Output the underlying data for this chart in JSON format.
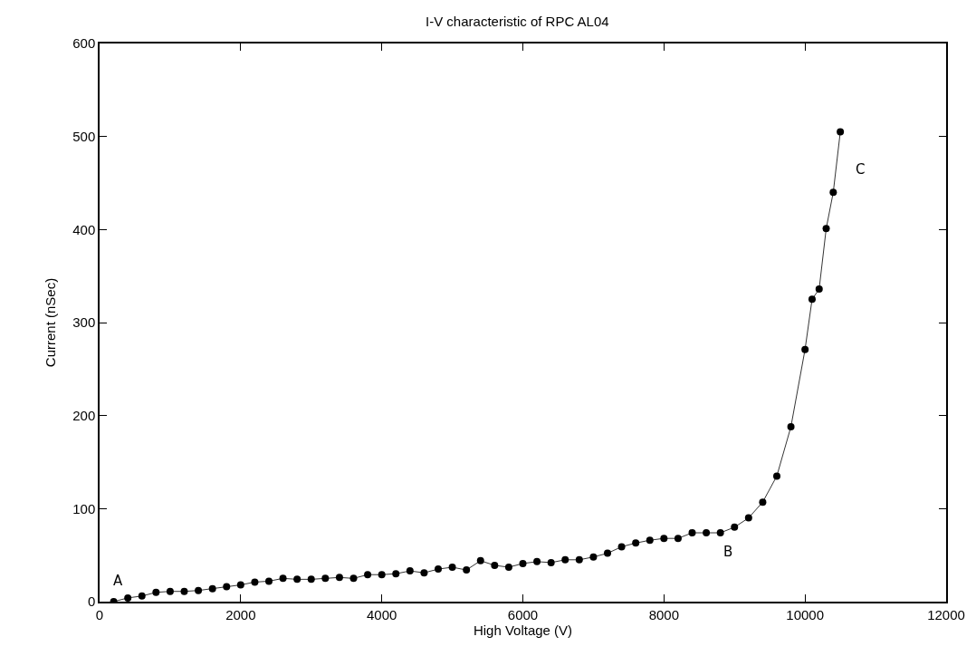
{
  "chart_data": {
    "type": "line",
    "title": "I-V characteristic of RPC AL04",
    "xlabel": "High Voltage (V)",
    "ylabel": "Current (nSec)",
    "x": [
      200,
      400,
      600,
      800,
      1000,
      1200,
      1400,
      1600,
      1800,
      2000,
      2200,
      2400,
      2600,
      2800,
      3000,
      3200,
      3400,
      3600,
      3800,
      4000,
      4200,
      4400,
      4600,
      4800,
      5000,
      5200,
      5400,
      5600,
      5800,
      6000,
      6200,
      6400,
      6600,
      6800,
      7000,
      7200,
      7400,
      7600,
      7800,
      8000,
      8200,
      8400,
      8600,
      8800,
      9000,
      9200,
      9400,
      9600,
      9800,
      10000,
      10100,
      10200,
      10300,
      10400,
      10500
    ],
    "series": [
      {
        "color": "#000000",
        "values": [
          0,
          4,
          6,
          10,
          11,
          11,
          12,
          14,
          16,
          18,
          21,
          22,
          25,
          24,
          24,
          25,
          26,
          25,
          29,
          29,
          30,
          33,
          31,
          35,
          37,
          34,
          44,
          39,
          37,
          41,
          43,
          42,
          45,
          45,
          48,
          52,
          59,
          63,
          66,
          68,
          68,
          74,
          74,
          74,
          80,
          90,
          107,
          135,
          188,
          271,
          325,
          336,
          401,
          440,
          505
        ]
      }
    ],
    "xlim": [
      0,
      12000
    ],
    "xticks": [
      0,
      2000,
      4000,
      6000,
      8000,
      10000,
      12000
    ],
    "ylim": [
      0,
      600
    ],
    "yticks": [
      0,
      100,
      200,
      300,
      400,
      500,
      600
    ],
    "marker": "circle",
    "line_style": "solid",
    "annotations": [
      "A",
      "B",
      "C"
    ]
  }
}
